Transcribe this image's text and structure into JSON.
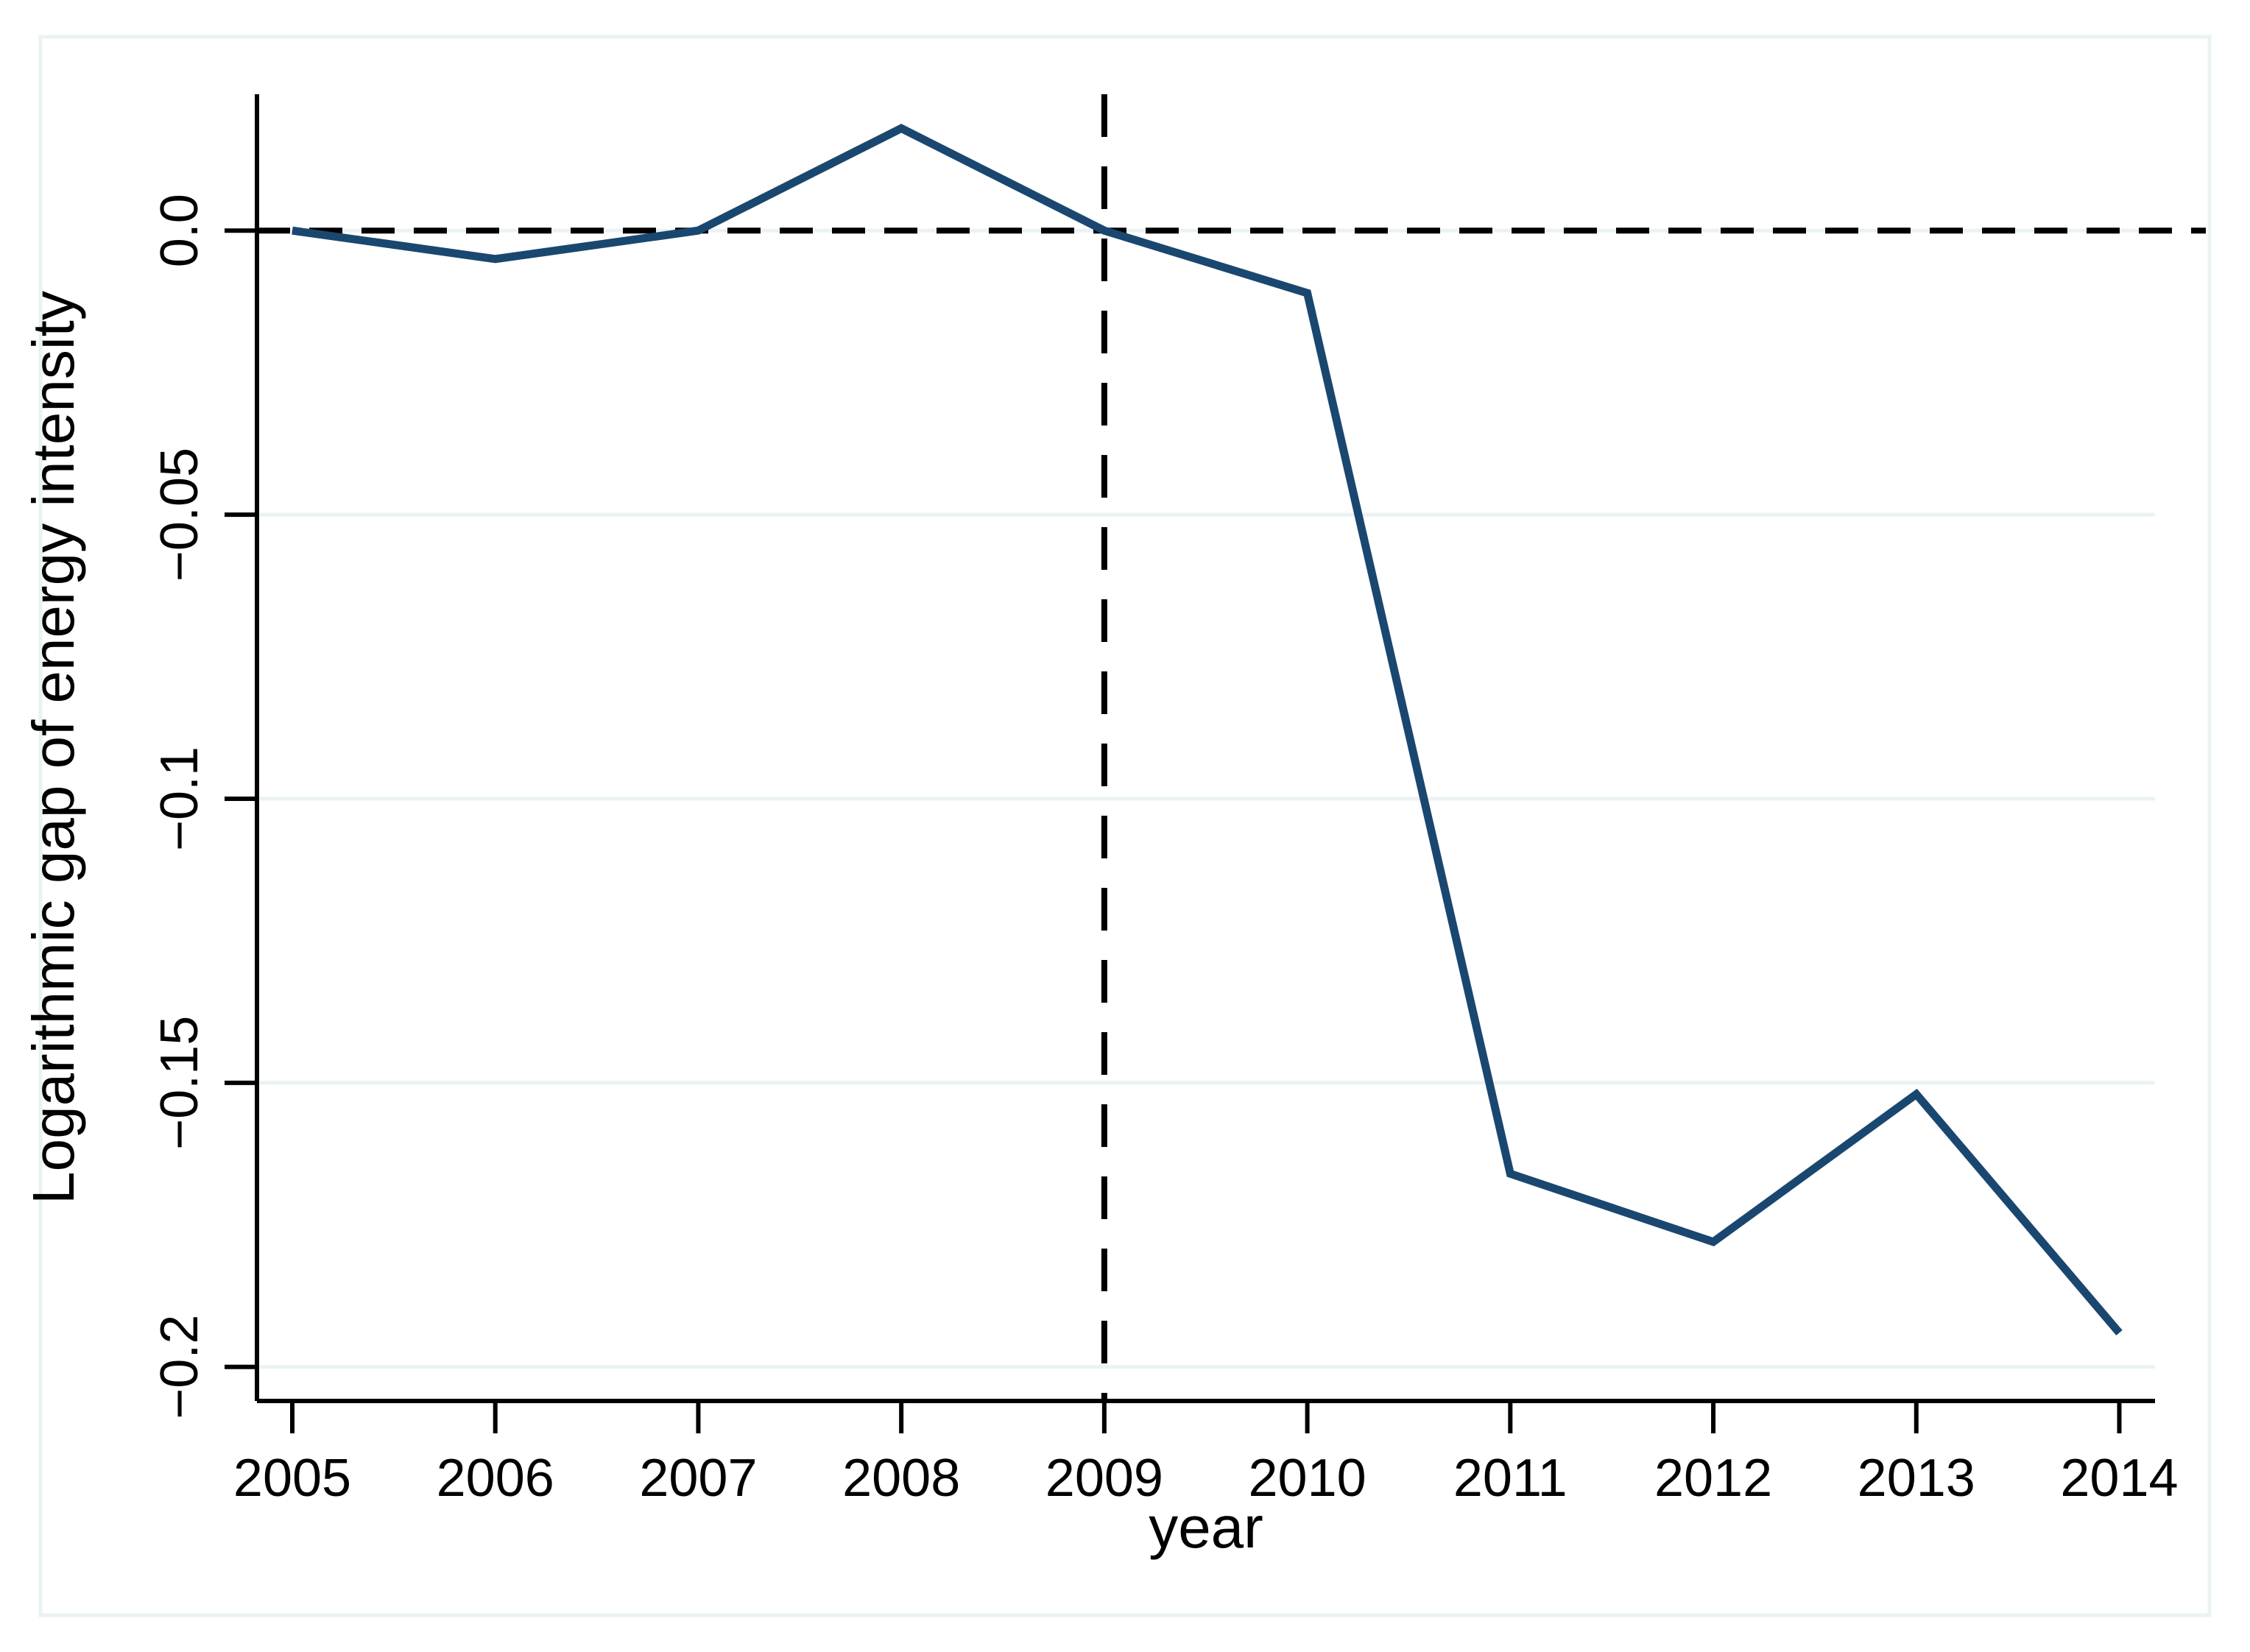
{
  "figure": {
    "background": "#ffffff",
    "border_color": "#eaf2f3"
  },
  "chart_data": {
    "type": "line",
    "title": "",
    "xlabel": "year",
    "ylabel": "Logarithmic gap of energy intensity",
    "x": [
      2005,
      2006,
      2007,
      2008,
      2009,
      2010,
      2011,
      2012,
      2013,
      2014
    ],
    "series": [
      {
        "name": "Logarithmic gap of energy intensity",
        "color": "#1a476f",
        "values": [
          0.0,
          -0.005,
          0.0,
          0.018,
          0.0,
          -0.011,
          -0.166,
          -0.178,
          -0.152,
          -0.194
        ]
      }
    ],
    "xlim": [
      2004.83,
      2014.18
    ],
    "ylim": [
      -0.206,
      0.024
    ],
    "x_ticks": [
      {
        "label": "2005",
        "value": 2005
      },
      {
        "label": "2006",
        "value": 2006
      },
      {
        "label": "2007",
        "value": 2007
      },
      {
        "label": "2008",
        "value": 2008
      },
      {
        "label": "2009",
        "value": 2009
      },
      {
        "label": "2010",
        "value": 2010
      },
      {
        "label": "2011",
        "value": 2011
      },
      {
        "label": "2012",
        "value": 2012
      },
      {
        "label": "2013",
        "value": 2013
      },
      {
        "label": "2014",
        "value": 2014
      }
    ],
    "y_ticks": [
      {
        "label": "0.0",
        "value": 0
      },
      {
        "label": "−0.05",
        "value": -0.05
      },
      {
        "label": "−0.1",
        "value": -0.1
      },
      {
        "label": "−0.15",
        "value": -0.15
      },
      {
        "label": "−0.2",
        "value": -0.2
      }
    ],
    "grid": true,
    "legend": "none",
    "reference_lines": [
      {
        "axis": "y",
        "value": 0,
        "style": "dashed",
        "color": "#000000"
      },
      {
        "axis": "x",
        "value": 2009,
        "style": "dashed",
        "color": "#000000"
      }
    ],
    "colors": {
      "axis": "#000000",
      "grid": "#eaf2f3",
      "tick_text": "#000000"
    }
  }
}
